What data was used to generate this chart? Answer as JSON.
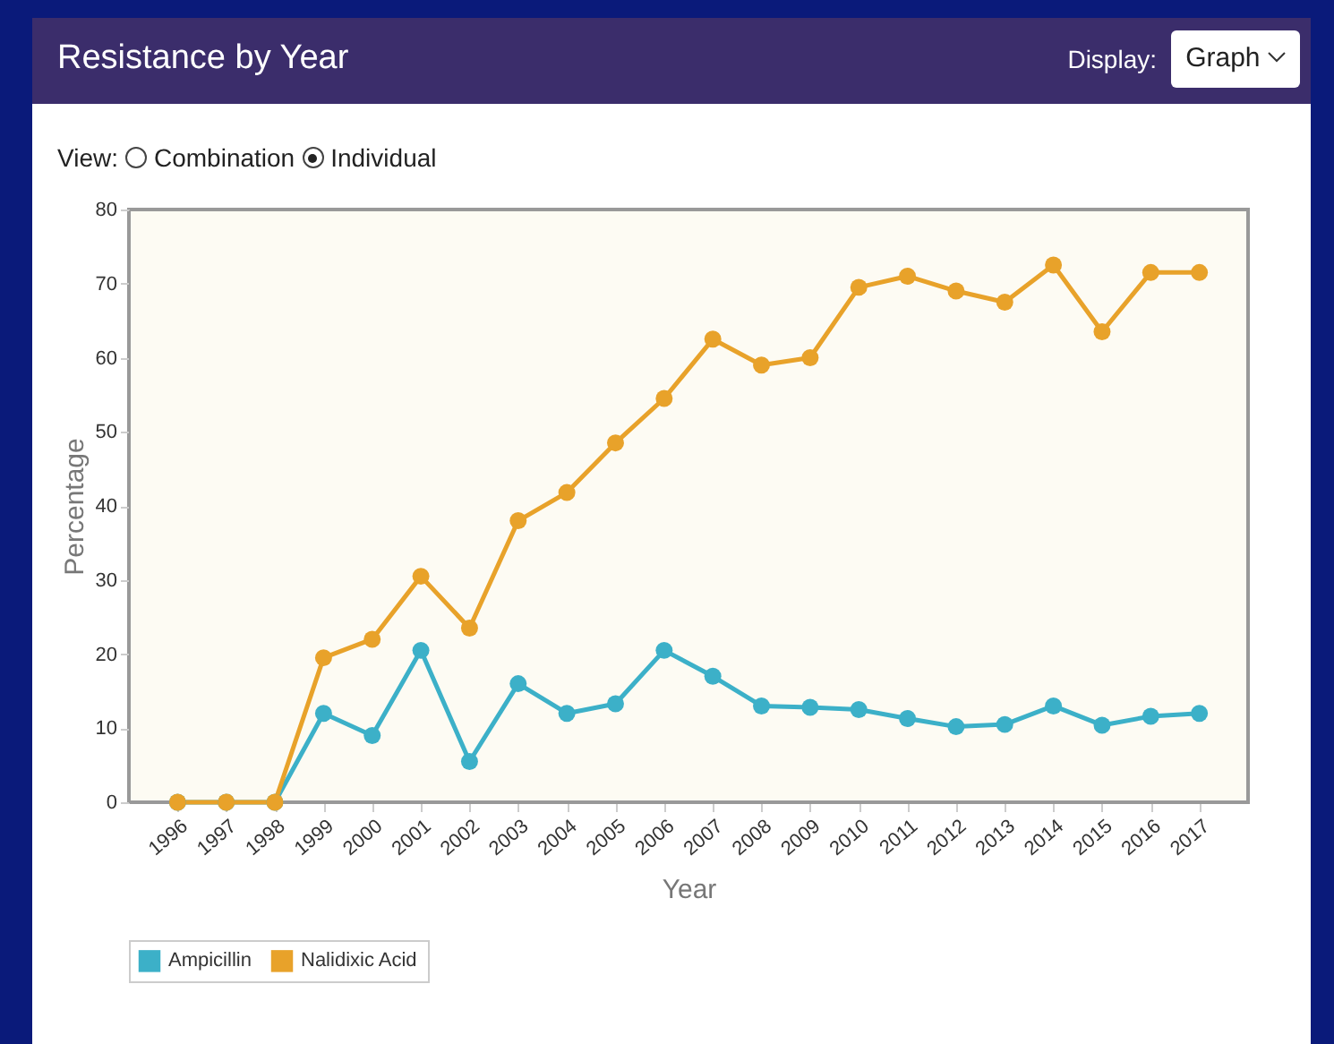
{
  "chart_data": {
    "type": "line",
    "title": "Resistance by Year",
    "xlabel": "Year",
    "ylabel": "Percentage",
    "annotations": [
      "Display:",
      "Graph",
      "View:",
      "Combination",
      "Individual"
    ],
    "categories": [
      "1996",
      "1997",
      "1998",
      "1999",
      "2000",
      "2001",
      "2002",
      "2003",
      "2004",
      "2005",
      "2006",
      "2007",
      "2008",
      "2009",
      "2010",
      "2011",
      "2012",
      "2013",
      "2014",
      "2015",
      "2016",
      "2017"
    ],
    "series": [
      {
        "name": "Ampicillin",
        "color": "#3cb0c8",
        "values": [
          0,
          0,
          0,
          12,
          9,
          20.5,
          5.5,
          16,
          12,
          13.3,
          20.5,
          17,
          13,
          12.8,
          12.5,
          11.3,
          10.2,
          10.5,
          13,
          10.4,
          11.6,
          12
        ]
      },
      {
        "name": "Nalidixic Acid",
        "color": "#e8a22a",
        "values": [
          0,
          0,
          0,
          19.5,
          22,
          30.5,
          23.5,
          38,
          41.8,
          48.5,
          54.5,
          62.5,
          59,
          60,
          69.5,
          71,
          69,
          67.5,
          72.5,
          63.5,
          71.5,
          71.5
        ]
      }
    ],
    "ylim": [
      0,
      80
    ],
    "yticks": [
      0,
      10,
      20,
      30,
      40,
      50,
      60,
      70,
      80
    ],
    "grid": false,
    "legend": "bottom",
    "marker": "circle"
  }
}
